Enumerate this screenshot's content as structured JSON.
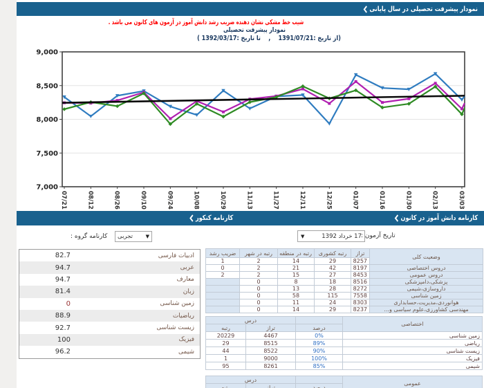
{
  "top_bar": {
    "title": "نمودار پیشرفت تحصیلی در سال پایانی"
  },
  "notice": "شیب خط مشکی نشان دهنده ضریب رشد دانش آموز در آزمون های کانون می باشد .",
  "chart_header": {
    "title": "نمودار پیشرفت تحصیلی",
    "date_range": "(از تاریخ :1391/07/21    ,    تا تاریخ :1392/03/17 )"
  },
  "chart_data": {
    "type": "line",
    "title": "نمودار پیشرفت تحصیلی",
    "categories": [
      "07/21",
      "08/12",
      "08/26",
      "09/10",
      "09/24",
      "10/08",
      "10/29",
      "11/13",
      "11/27",
      "12/11",
      "12/25",
      "01/07",
      "01/16",
      "01/30",
      "02/13",
      "03/03"
    ],
    "ylim": [
      7000,
      9000
    ],
    "yticks": [
      9000,
      8500,
      8000,
      7500,
      7000
    ],
    "ytick_labels": [
      "9,000",
      "8,500",
      "8,000",
      "7,500",
      "7,000"
    ],
    "gridlines": [
      8500,
      8000,
      7500
    ],
    "series": [
      {
        "name": "blue",
        "color": "#2f7cc0",
        "marker": "triangle",
        "values": [
          8330,
          8045,
          8350,
          8420,
          8190,
          8065,
          8425,
          8160,
          8340,
          8360,
          7935,
          8660,
          8465,
          8445,
          8675,
          8290
        ],
        "edge": 8345
      },
      {
        "name": "magenta",
        "color": "#b01fb0",
        "marker": "square",
        "values": [
          8245,
          8240,
          8280,
          8400,
          8010,
          8270,
          8110,
          8300,
          8345,
          8450,
          8235,
          8560,
          8250,
          8305,
          8535,
          8155
        ],
        "edge": 8240
      },
      {
        "name": "green",
        "color": "#2f8b24",
        "marker": "diamond",
        "values": [
          8150,
          8255,
          8195,
          8385,
          7930,
          8230,
          8040,
          8255,
          8330,
          8490,
          8310,
          8430,
          8175,
          8230,
          8485,
          8075
        ],
        "edge": 8170
      }
    ],
    "trend_line": {
      "color": "#0a0a0a",
      "start": 8245,
      "end": 8350
    }
  },
  "section_bar": {
    "right_title": "کارنامه دانش آموز در کانون",
    "left_title": "کارنامه کنکور"
  },
  "exam_form": {
    "date_label": "تاریخ آزمون :",
    "date_value": "17 خرداد 1392",
    "group_label": "کارنامه گروه :",
    "group_value": "تجربی",
    "dropdown_arrow": "▼"
  },
  "group_table": {
    "rows": [
      {
        "subject": "ادبیات فارسی",
        "value": "82.7"
      },
      {
        "subject": "عربی",
        "value": "94.7"
      },
      {
        "subject": "معارف",
        "value": "94.7"
      },
      {
        "subject": "زبان",
        "value": "81.4"
      },
      {
        "subject": "زمین شناسی",
        "value": "0"
      },
      {
        "subject": "ریاضیات",
        "value": "88.9"
      },
      {
        "subject": "زیست شناسی",
        "value": "92.7"
      },
      {
        "subject": "فیزیک",
        "value": "100"
      },
      {
        "subject": "شیمی",
        "value": "96.2"
      }
    ]
  },
  "status_table": {
    "title": "وضعیت کلی",
    "headers": [
      "تراز",
      "رتبه کشوری",
      "رتبه در منطقه",
      "رتبه در شهر",
      "ضریب رشد"
    ],
    "overall": {
      "taraz": "8257",
      "country": "29",
      "region": "14",
      "city": "2",
      "growth": "1"
    },
    "rows": [
      {
        "label": "دروس اختصاصی",
        "taraz": "8197",
        "country": "42",
        "region": "21",
        "city": "2",
        "growth": "0"
      },
      {
        "label": "دروس عمومی",
        "taraz": "8453",
        "country": "27",
        "region": "15",
        "city": "2",
        "growth": "2"
      },
      {
        "label": "پزشکی،دامپزشکی",
        "taraz": "8516",
        "country": "18",
        "region": "8",
        "city": "0",
        "growth": ""
      },
      {
        "label": "داروسازی،شیمی",
        "taraz": "8272",
        "country": "28",
        "region": "13",
        "city": "0",
        "growth": ""
      },
      {
        "label": "زمین شناسی",
        "taraz": "7558",
        "country": "115",
        "region": "58",
        "city": "0",
        "growth": ""
      },
      {
        "label": "هوانوردی،مدیریت،حسابداری",
        "taraz": "8303",
        "country": "24",
        "region": "11",
        "city": "0",
        "growth": ""
      },
      {
        "label": "مهندسی کشاورزی،علوم سیاسی و...",
        "taraz": "8237",
        "country": "29",
        "region": "14",
        "city": "0",
        "growth": ""
      }
    ]
  },
  "special_table": {
    "title": "اختصاصی",
    "group_header": "درس",
    "headers": [
      "درصد",
      "تراز",
      "رتبه"
    ],
    "rows": [
      {
        "subject": "زمین شناسی",
        "rank": "20229",
        "taraz": "4467",
        "percent": "0%"
      },
      {
        "subject": "ریاضی",
        "rank": "29",
        "taraz": "8515",
        "percent": "89%"
      },
      {
        "subject": "زیست شناسی",
        "rank": "44",
        "taraz": "8522",
        "percent": "90%"
      },
      {
        "subject": "فیزیک",
        "rank": "1",
        "taraz": "9000",
        "percent": "100%"
      },
      {
        "subject": "شیمی",
        "rank": "95",
        "taraz": "8261",
        "percent": "85%"
      }
    ]
  },
  "general_table": {
    "title": "عمومی",
    "group_header": "درس",
    "headers": [
      "درصد",
      "تراز",
      "رتبه"
    ]
  }
}
